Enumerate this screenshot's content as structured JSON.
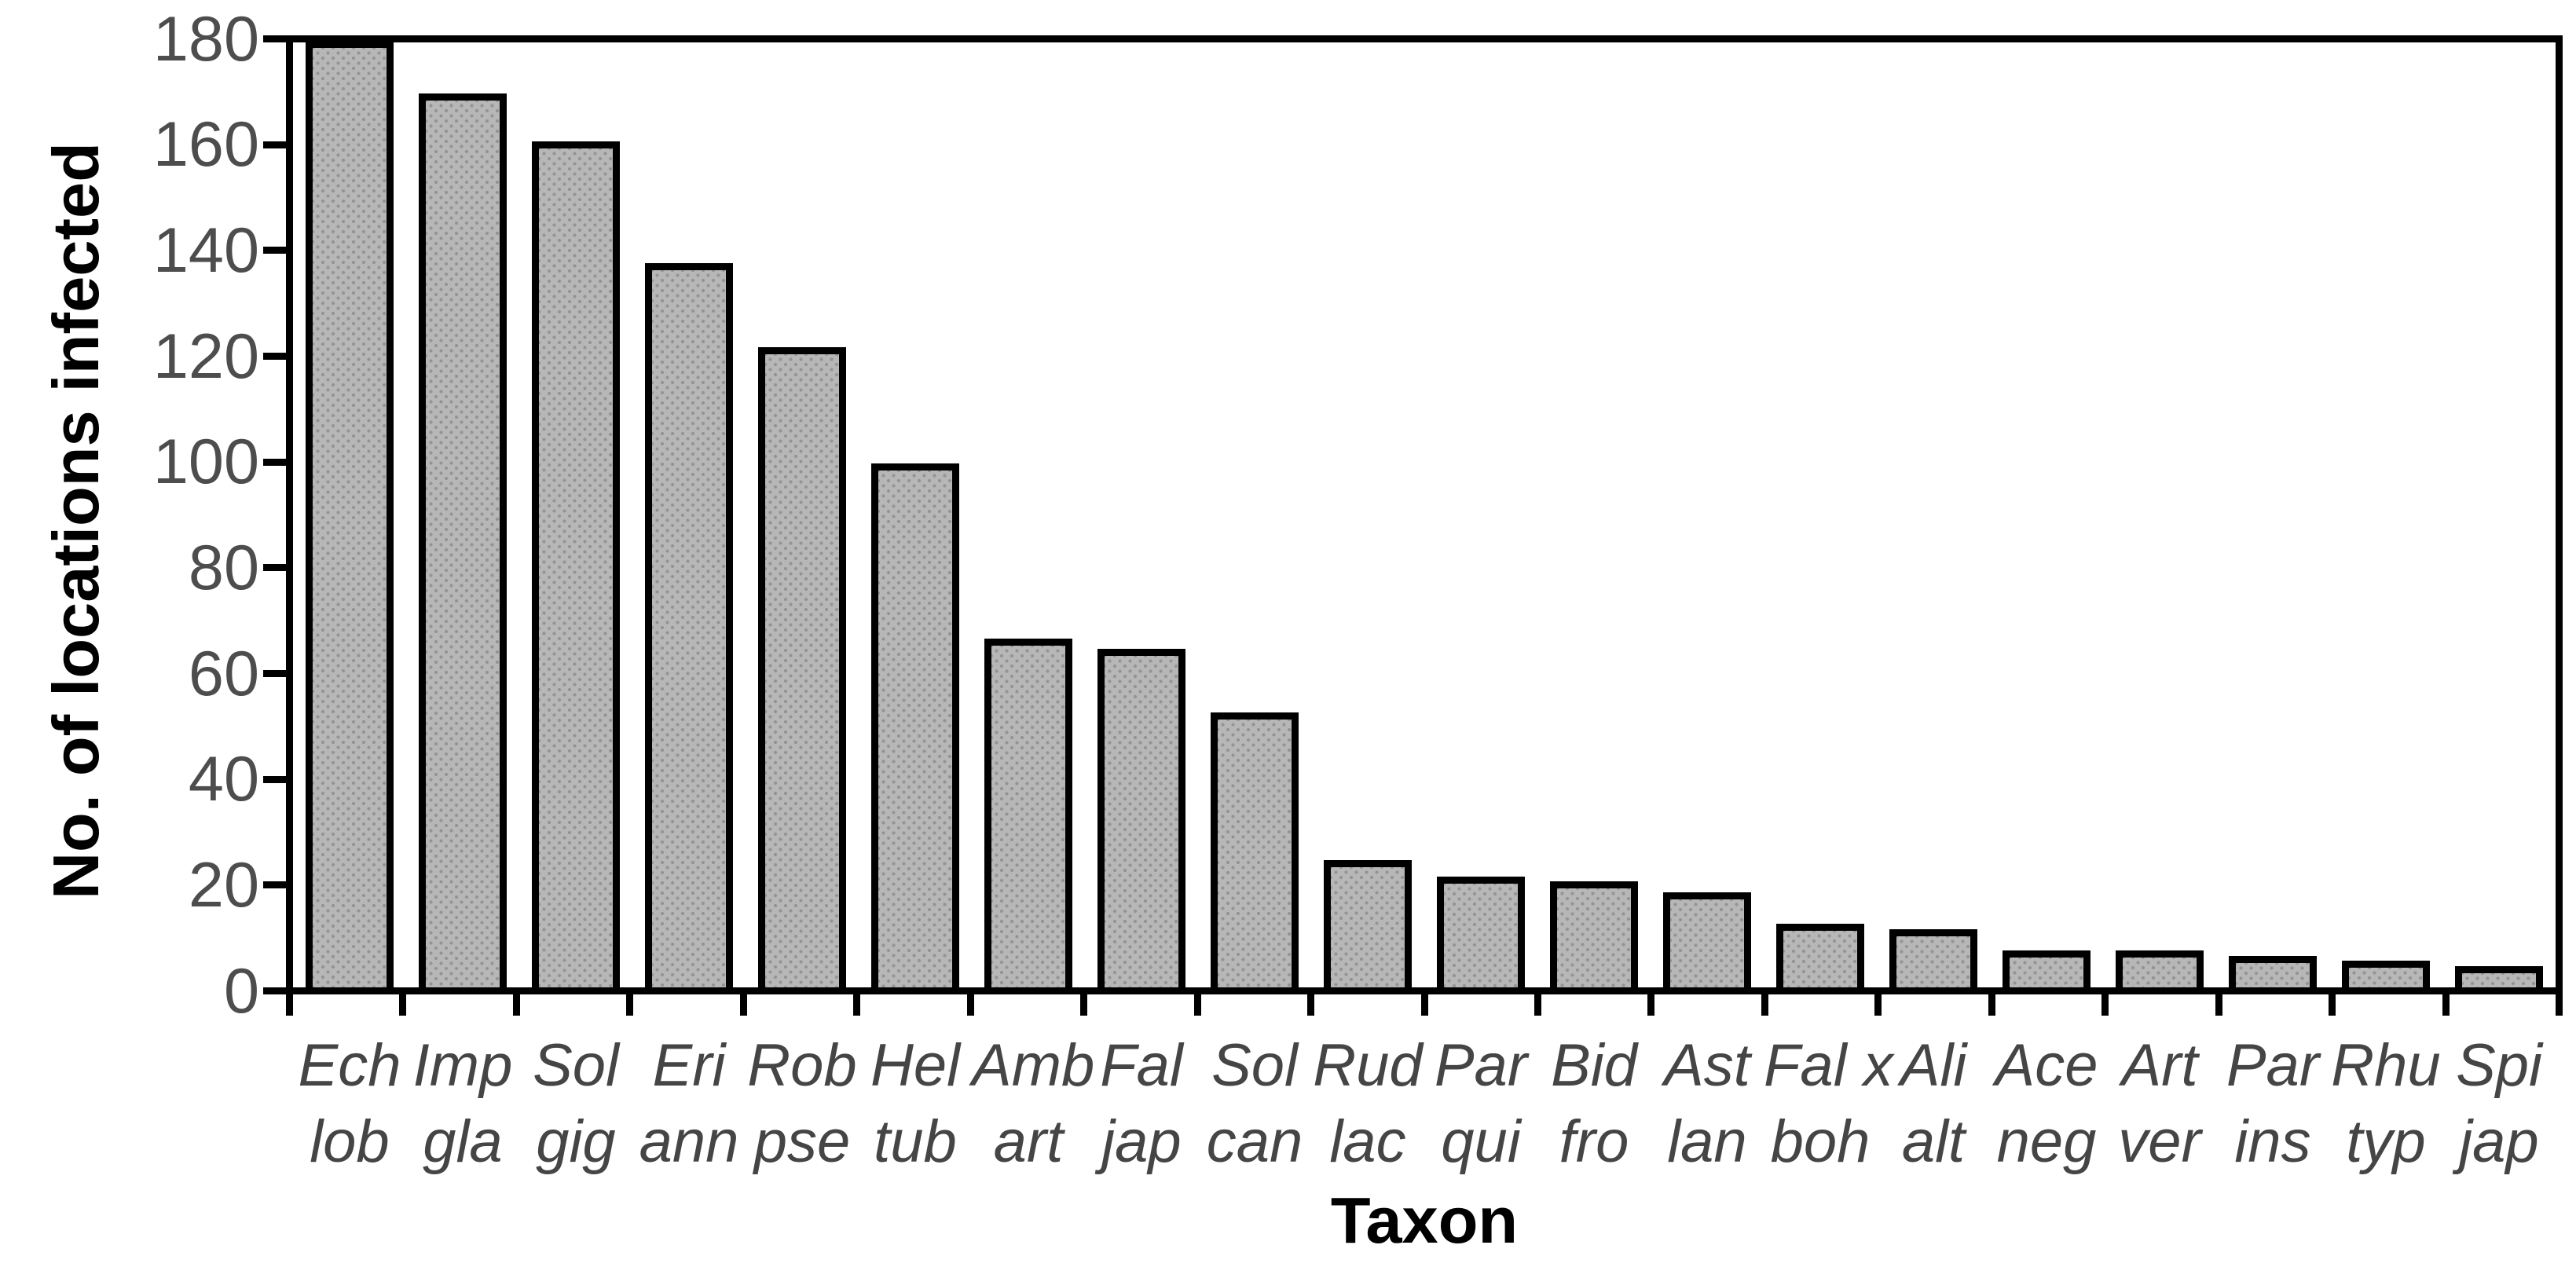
{
  "chart_data": {
    "type": "bar",
    "title": "",
    "xlabel": "Taxon",
    "ylabel": "No. of locations infected",
    "ylim": [
      0,
      180
    ],
    "ytick_step": 20,
    "yticks": [
      0,
      20,
      40,
      60,
      80,
      100,
      120,
      140,
      160,
      180
    ],
    "categories": [
      "Ech lob",
      "Imp gla",
      "Sol gig",
      "Eri ann",
      "Rob pse",
      "Hel tub",
      "Amb art",
      "Fal jap",
      "Sol can",
      "Rud lac",
      "Par qui",
      "Bid fro",
      "Ast lan",
      "Fal x boh",
      "Ali alt",
      "Ace neg",
      "Art ver",
      "Par ins",
      "Rhu typ",
      "Spi jap"
    ],
    "categories_lines": [
      [
        "Ech",
        "lob"
      ],
      [
        "Imp",
        "gla"
      ],
      [
        "Sol",
        "gig"
      ],
      [
        "Eri",
        "ann"
      ],
      [
        "Rob",
        "pse"
      ],
      [
        "Hel",
        "tub"
      ],
      [
        "Amb",
        "art"
      ],
      [
        "Fal",
        "jap"
      ],
      [
        "Sol",
        "can"
      ],
      [
        "Rud",
        "lac"
      ],
      [
        "Par",
        "qui"
      ],
      [
        "Bid",
        "fro"
      ],
      [
        "Ast",
        "lan"
      ],
      [
        "Fal x",
        "boh"
      ],
      [
        "Ali",
        "alt"
      ],
      [
        "Ace",
        "neg"
      ],
      [
        "Art",
        "ver"
      ],
      [
        "Par",
        "ins"
      ],
      [
        "Rhu",
        "typ"
      ],
      [
        "Spi",
        "jap"
      ]
    ],
    "values": [
      179,
      169,
      160,
      137,
      121,
      99,
      66,
      64,
      52,
      24,
      21,
      20,
      18,
      12,
      11,
      7,
      7,
      6,
      5,
      4
    ],
    "grid": "off",
    "legend": "none",
    "colors": {
      "bar_fill": "#b7b7b7",
      "bar_pattern_dot": "#949494",
      "bar_border": "#000000",
      "axis": "#000000",
      "y_tick_label": "#4d4d4d",
      "x_tick_label": "#454545",
      "axis_title": "#000000",
      "background": "#ffffff"
    }
  }
}
